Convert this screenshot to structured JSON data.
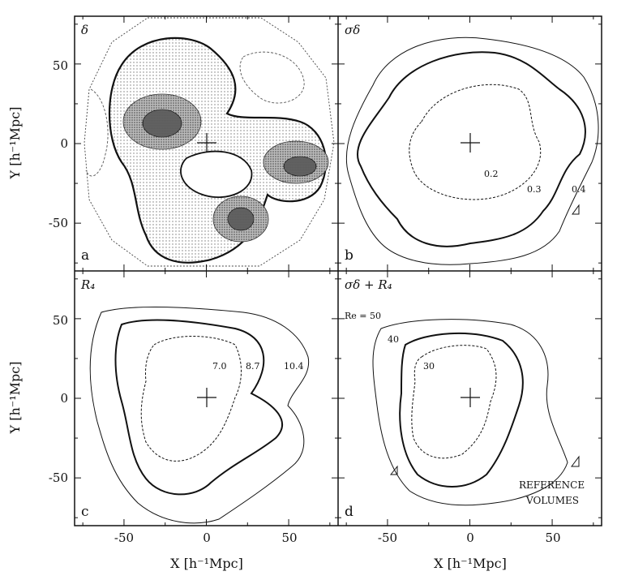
{
  "chart_data": {
    "type": "contour",
    "shared": {
      "xlabel": "X [h⁻¹Mpc]",
      "ylabel": "Y [h⁻¹Mpc]",
      "xlim": [
        -80,
        80
      ],
      "ylim": [
        -80,
        80
      ],
      "xticks": [
        -50,
        0,
        50
      ],
      "yticks": [
        -50,
        0,
        50
      ],
      "origin_marker": "cross"
    },
    "panels": [
      {
        "id": "a",
        "letter": "a",
        "title": "δ",
        "content": "density contrast field, filled contours, thick line at delta = 0",
        "contour_labels": []
      },
      {
        "id": "b",
        "letter": "b",
        "title": "σδ",
        "contour_labels": [
          "0.2",
          "0.3",
          "0.4"
        ]
      },
      {
        "id": "c",
        "letter": "c",
        "title": "R₄",
        "contour_labels": [
          "7.0",
          "8.7",
          "10.4"
        ]
      },
      {
        "id": "d",
        "letter": "d",
        "title": "σδ + R₄",
        "contour_labels": [
          "Re = 50",
          "40",
          "30"
        ],
        "annotation": [
          "REFERENCE",
          "VOLUMES"
        ]
      }
    ]
  }
}
